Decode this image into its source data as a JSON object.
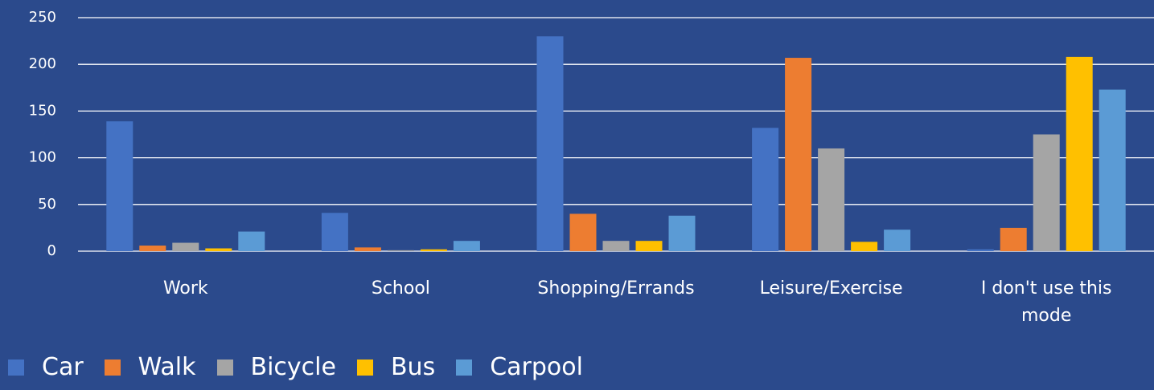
{
  "chart_data": {
    "type": "bar",
    "categories": [
      "Work",
      "School",
      "Shopping/Errands",
      "Leisure/Exercise",
      "I don't use this mode"
    ],
    "series": [
      {
        "name": "Car",
        "color": "#4472c4",
        "values": [
          139,
          41,
          230,
          132,
          2
        ]
      },
      {
        "name": "Walk",
        "color": "#ed7d31",
        "values": [
          6,
          4,
          40,
          207,
          25
        ]
      },
      {
        "name": "Bicycle",
        "color": "#a5a5a5",
        "values": [
          9,
          1,
          11,
          110,
          125
        ]
      },
      {
        "name": "Bus",
        "color": "#ffc000",
        "values": [
          3,
          2,
          11,
          10,
          208
        ]
      },
      {
        "name": "Carpool",
        "color": "#5b9bd5",
        "values": [
          21,
          11,
          38,
          23,
          173
        ]
      }
    ],
    "ylim": [
      0,
      250
    ],
    "yticks": [
      0,
      50,
      100,
      150,
      200,
      250
    ],
    "grid": true
  }
}
